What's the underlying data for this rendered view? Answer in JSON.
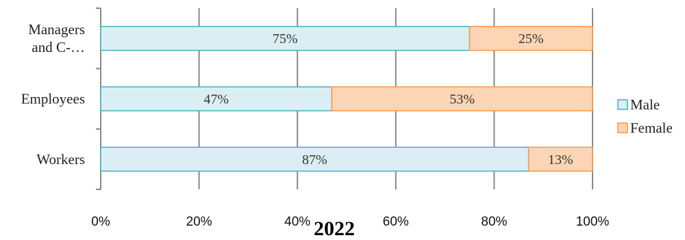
{
  "chart_data": {
    "type": "bar",
    "orientation": "horizontal",
    "stacked": "percent",
    "categories": [
      "Managers and C-…",
      "Employees",
      "Workers"
    ],
    "category_lines": [
      [
        "Managers",
        "and C-…"
      ],
      [
        "Employees"
      ],
      [
        "Workers"
      ]
    ],
    "series": [
      {
        "name": "Male",
        "values": [
          75,
          47,
          87
        ],
        "labels": [
          "75%",
          "47%",
          "87%"
        ],
        "fill": "#dbeef3",
        "stroke": "#4bacc6"
      },
      {
        "name": "Female",
        "values": [
          25,
          53,
          13
        ],
        "labels": [
          "25%",
          "53%",
          "13%"
        ],
        "fill": "#fcd5b4",
        "stroke": "#f79646"
      }
    ],
    "xlim": [
      0,
      100
    ],
    "x_ticks": [
      0,
      20,
      40,
      60,
      80,
      100
    ],
    "x_tick_labels": [
      "0%",
      "20%",
      "40%",
      "60%",
      "80%",
      "100%"
    ],
    "title": "2022",
    "xlabel": "",
    "ylabel": "",
    "grid": "vertical",
    "legend": "right"
  }
}
